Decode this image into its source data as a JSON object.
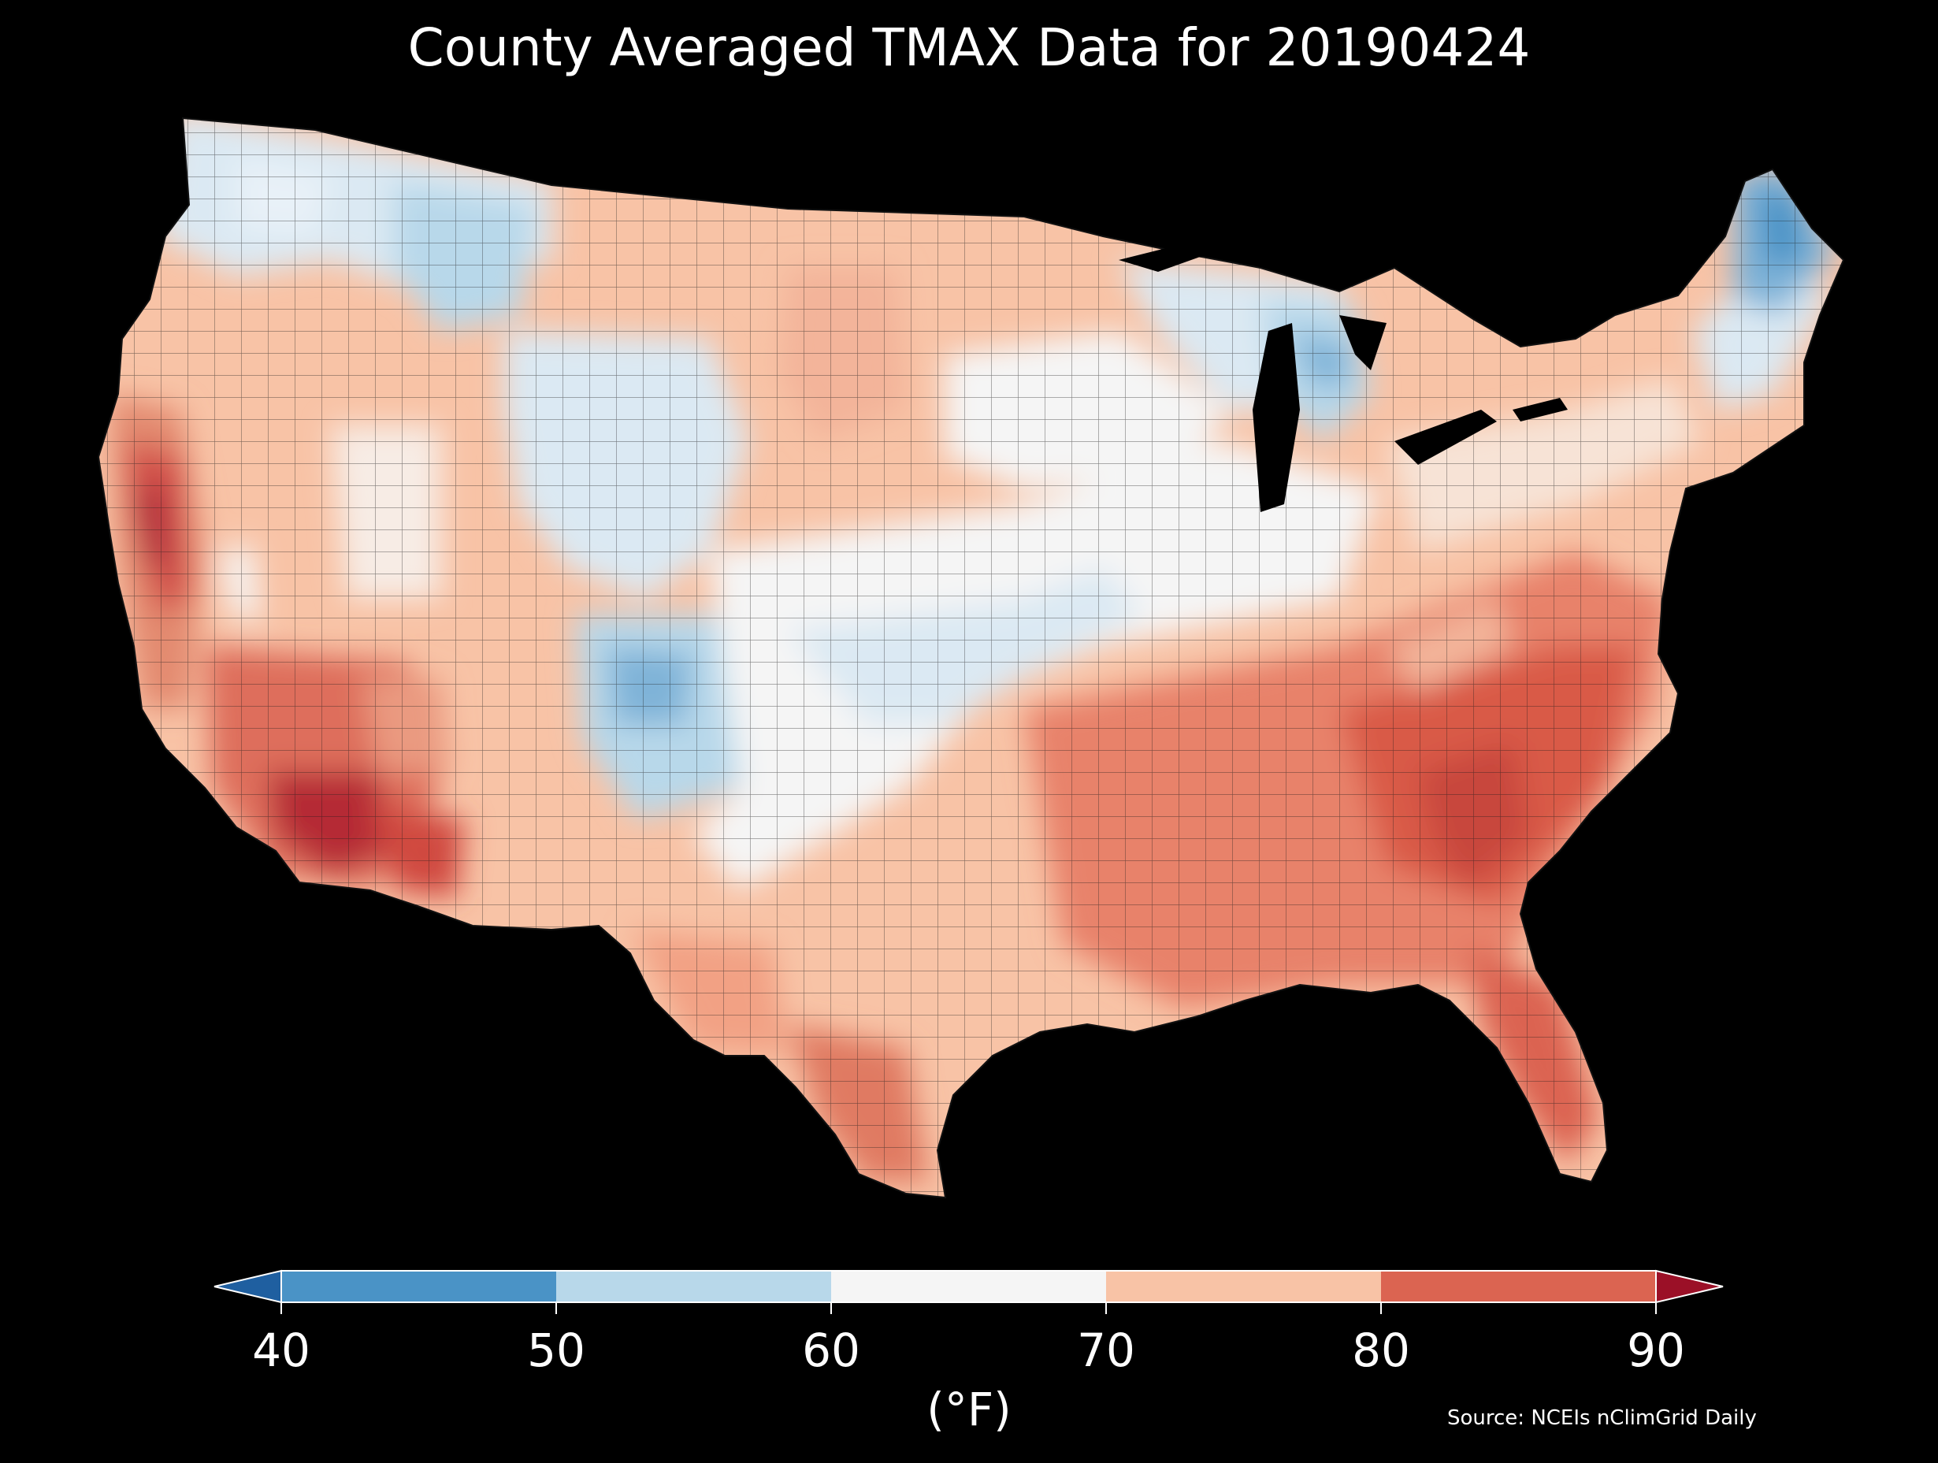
{
  "title": "County Averaged TMAX Data for 20190424",
  "map": {
    "region": "Contiguous United States",
    "colormap": "RdBu_r",
    "palette": {
      "below_40": "#1f5fa0",
      "40_50": "#4a93c6",
      "50_60": "#b8d8ea",
      "60_70": "#f5f5f5",
      "70_80": "#f8c3a6",
      "80_90": "#db6451",
      "above_90": "#9b1027",
      "background": "#000000",
      "border": "#222222"
    }
  },
  "colorbar": {
    "ticks": [
      "40",
      "50",
      "60",
      "70",
      "80",
      "90"
    ],
    "units": "(°F)",
    "extend": "both"
  },
  "source": "Source: NCEIs nClimGrid Daily"
}
